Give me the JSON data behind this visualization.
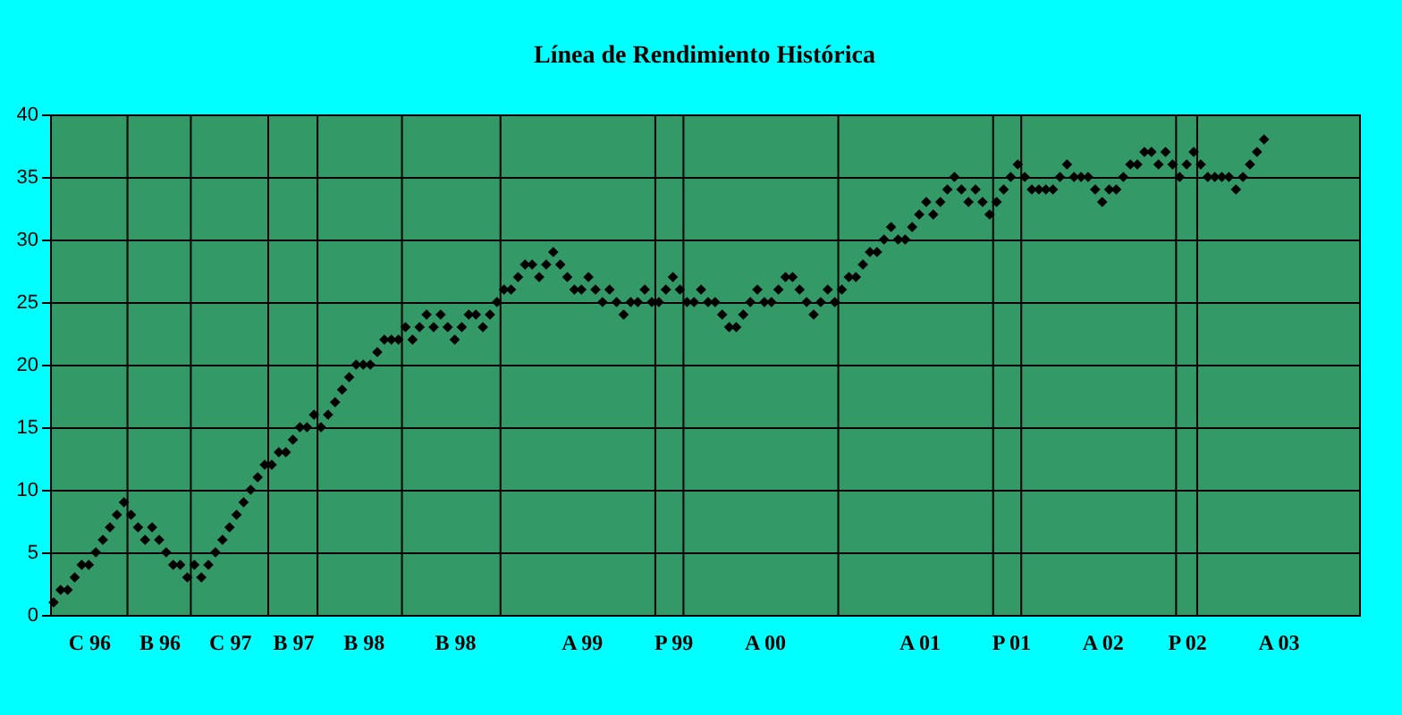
{
  "chart_data": {
    "type": "scatter",
    "title": "Línea de Rendimiento Histórica",
    "categories": [
      null,
      null,
      null,
      null,
      null,
      "C 96",
      null,
      null,
      null,
      null,
      null,
      null,
      null,
      null,
      null,
      "B 96",
      null,
      null,
      null,
      null,
      null,
      null,
      null,
      null,
      null,
      "C 97",
      null,
      null,
      null,
      null,
      null,
      null,
      null,
      null,
      "B 97",
      null,
      null,
      null,
      null,
      null,
      null,
      null,
      null,
      null,
      "B 98",
      null,
      null,
      null,
      null,
      null,
      null,
      null,
      null,
      null,
      null,
      null,
      null,
      "B 98",
      null,
      null,
      null,
      null,
      null,
      null,
      null,
      null,
      null,
      null,
      null,
      null,
      null,
      null,
      null,
      null,
      null,
      "A 99",
      null,
      null,
      null,
      null,
      null,
      null,
      null,
      null,
      null,
      null,
      null,
      null,
      "P 99",
      null,
      null,
      null,
      null,
      null,
      null,
      null,
      null,
      null,
      null,
      null,
      null,
      "A 00",
      null,
      null,
      null,
      null,
      null,
      null,
      null,
      null,
      null,
      null,
      null,
      null,
      null,
      null,
      null,
      null,
      null,
      null,
      null,
      null,
      null,
      "A 01",
      null,
      null,
      null,
      null,
      null,
      null,
      null,
      null,
      null,
      null,
      null,
      null,
      "P 01",
      null,
      null,
      null,
      null,
      null,
      null,
      null,
      null,
      null,
      null,
      null,
      null,
      "A 02",
      null,
      null,
      null,
      null,
      null,
      null,
      null,
      null,
      null,
      null,
      null,
      "P 02",
      null,
      null,
      null,
      null,
      null,
      null,
      null,
      null,
      null,
      null,
      null,
      null,
      "A 03",
      null,
      null,
      null,
      null,
      null,
      null,
      null,
      null,
      null,
      null,
      null
    ],
    "values": [
      1,
      2,
      2,
      3,
      4,
      4,
      5,
      6,
      7,
      8,
      9,
      8,
      7,
      6,
      7,
      6,
      5,
      4,
      4,
      3,
      4,
      3,
      4,
      5,
      6,
      7,
      8,
      9,
      10,
      11,
      12,
      12,
      13,
      13,
      14,
      15,
      15,
      16,
      15,
      16,
      17,
      18,
      19,
      20,
      20,
      20,
      21,
      22,
      22,
      22,
      23,
      22,
      23,
      24,
      23,
      24,
      23,
      22,
      23,
      24,
      24,
      23,
      24,
      25,
      26,
      26,
      27,
      28,
      28,
      27,
      28,
      29,
      28,
      27,
      26,
      26,
      27,
      26,
      25,
      26,
      25,
      24,
      25,
      25,
      26,
      25,
      25,
      26,
      27,
      26,
      25,
      25,
      26,
      25,
      25,
      24,
      23,
      23,
      24,
      25,
      26,
      25,
      25,
      26,
      27,
      27,
      26,
      25,
      24,
      25,
      26,
      25,
      26,
      27,
      27,
      28,
      29,
      29,
      30,
      31,
      30,
      30,
      31,
      32,
      33,
      32,
      33,
      34,
      35,
      34,
      33,
      34,
      33,
      32,
      33,
      34,
      35,
      36,
      35,
      34,
      34,
      34,
      34,
      35,
      36,
      35,
      35,
      35,
      34,
      33,
      34,
      34,
      35,
      36,
      36,
      37,
      37,
      36,
      37,
      36,
      35,
      36,
      37,
      36,
      35,
      35,
      35,
      35,
      34,
      35,
      36,
      37,
      38,
      null,
      null,
      null,
      null,
      null,
      null,
      null,
      null,
      null,
      null,
      null,
      null,
      null
    ],
    "color": "#000000",
    "marker": "diamond",
    "ylim": [
      0,
      40
    ],
    "yticks": [
      0,
      5,
      10,
      15,
      20,
      25,
      30,
      35,
      40
    ],
    "grid": "y"
  }
}
